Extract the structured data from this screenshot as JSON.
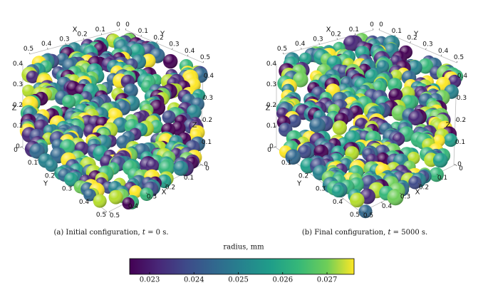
{
  "figure": {
    "panels": [
      {
        "caption": {
          "prefix": "(a) Initial configuration, ",
          "var": "t",
          "suffix": " = 0 s."
        },
        "axes": [
          {
            "label": "X",
            "ticks": [
              0,
              0.1,
              0.2,
              0.3,
              0.4,
              0.5
            ]
          },
          {
            "label": "Y",
            "ticks": [
              0,
              0.1,
              0.2,
              0.3,
              0.4,
              0.5
            ]
          },
          {
            "label": "Z",
            "ticks": [
              0,
              0.1,
              0.2,
              0.3,
              0.4
            ]
          },
          {
            "label": "Z",
            "ticks": [
              0,
              0.1,
              0.2,
              0.3,
              0.4
            ]
          },
          {
            "label": "Y",
            "ticks": [
              0,
              0.1,
              0.2,
              0.3,
              0.4,
              0.5
            ]
          },
          {
            "label": "X",
            "ticks": [
              0,
              0.1,
              0.2,
              0.3,
              0.4,
              0.5
            ]
          }
        ]
      },
      {
        "caption": {
          "prefix": "(b) Final configuration, ",
          "var": "t",
          "suffix": " = 5000 s."
        },
        "axes": [
          {
            "label": "X",
            "ticks": [
              0,
              0.1,
              0.2,
              0.3,
              0.4,
              0.5
            ]
          },
          {
            "label": "Y",
            "ticks": [
              0,
              0.1,
              0.2,
              0.3,
              0.4,
              0.5
            ]
          },
          {
            "label": "Z",
            "ticks": [
              0,
              0.1,
              0.2,
              0.3,
              0.4
            ]
          },
          {
            "label": "Z",
            "ticks": [
              0,
              0.1,
              0.2,
              0.3,
              0.4
            ]
          },
          {
            "label": "Y",
            "ticks": [
              0,
              0.1,
              0.2,
              0.3,
              0.4,
              0.5
            ]
          },
          {
            "label": "X",
            "ticks": [
              0,
              0.1,
              0.2,
              0.3,
              0.4,
              0.5
            ]
          }
        ]
      }
    ],
    "colorbar": {
      "title": "radius, mm",
      "lim": [
        0.02255,
        0.02761
      ],
      "ticks": [
        0.023,
        0.024,
        0.025,
        0.026,
        0.027
      ]
    }
  }
}
